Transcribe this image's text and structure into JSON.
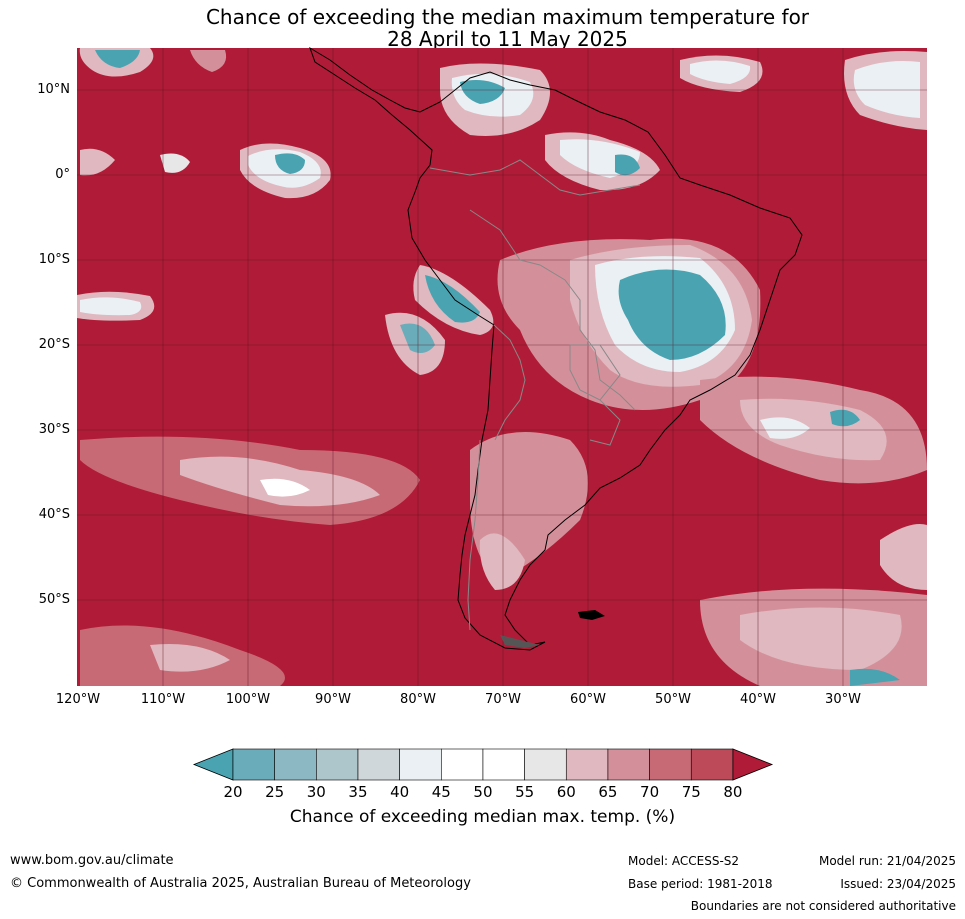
{
  "title": {
    "line1": "Chance of exceeding the median maximum temperature for",
    "line2": "28 April to 11 May 2025"
  },
  "map": {
    "region": "South America",
    "lat_labels": [
      "10°N",
      "0°",
      "10°S",
      "20°S",
      "30°S",
      "40°S",
      "50°S"
    ],
    "lon_labels": [
      "120°W",
      "110°W",
      "100°W",
      "90°W",
      "80°W",
      "70°W",
      "60°W",
      "50°W",
      "40°W",
      "30°W"
    ],
    "background_color": "#b01c37",
    "grid_color": "#5a1020"
  },
  "legend": {
    "ticks": [
      "20",
      "25",
      "30",
      "35",
      "40",
      "45",
      "50",
      "55",
      "60",
      "65",
      "70",
      "75",
      "80"
    ],
    "colors": [
      "#4aa3b1",
      "#6aacb9",
      "#8cb8c4",
      "#adc6cb",
      "#d0d7da",
      "#eaf0f3",
      "#ffffff",
      "#ffffff",
      "#e8e7e8",
      "#e0b8bf",
      "#d4909a",
      "#c86a76",
      "#bd4a59",
      "#b01c37"
    ],
    "label": "Chance of exceeding median max. temp. (%)"
  },
  "footer": {
    "website": "www.bom.gov.au/climate",
    "copyright": "© Commonwealth of Australia 2025, Australian Bureau of Meteorology",
    "model": "Model: ACCESS-S2",
    "base_period": "Base period: 1981-2018",
    "model_run": "Model run: 21/04/2025",
    "issued": "Issued: 23/04/2025",
    "disclaimer": "Boundaries are not considered authoritative"
  }
}
